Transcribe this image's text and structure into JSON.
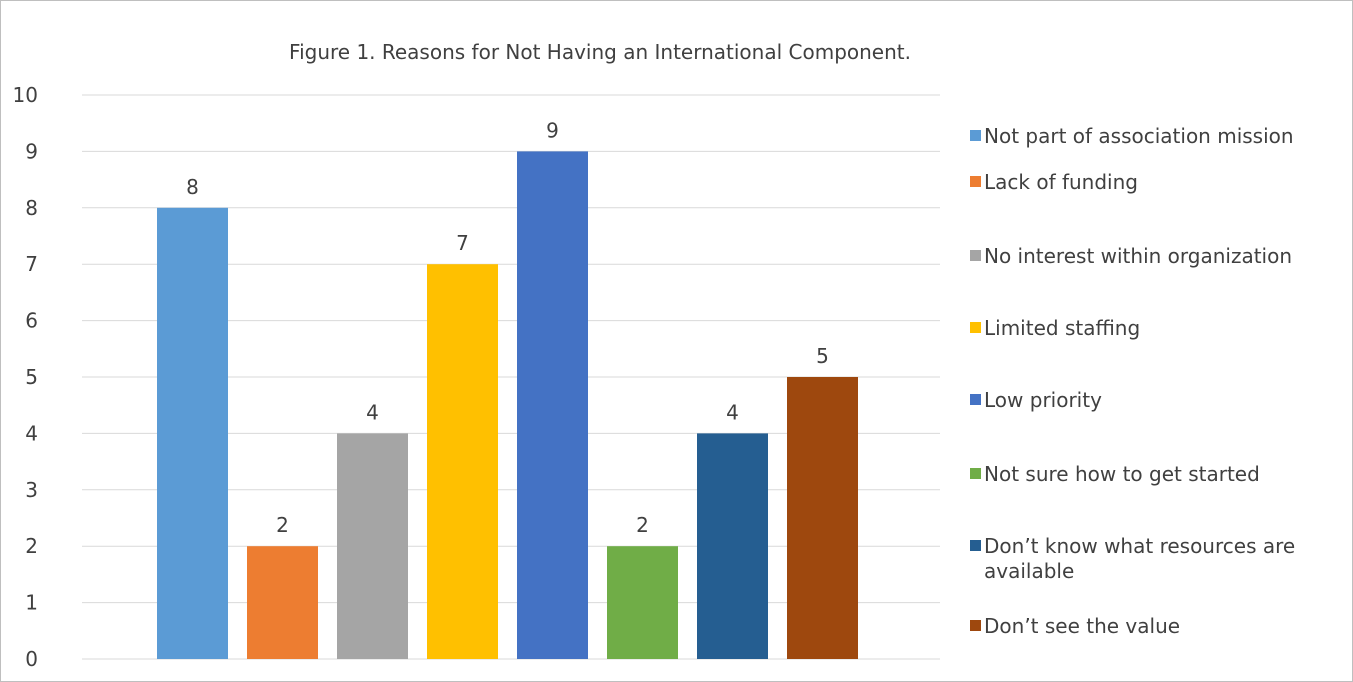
{
  "chart_data": {
    "type": "bar",
    "title": "Figure 1. Reasons for Not Having an International Component.",
    "xlabel": "",
    "ylabel": "",
    "ylim": [
      0,
      10
    ],
    "yticks": [
      0,
      1,
      2,
      3,
      4,
      5,
      6,
      7,
      8,
      9,
      10
    ],
    "grid": true,
    "legend_position": "right",
    "series": [
      {
        "name": "Not part of association mission",
        "values": [
          8
        ],
        "color": "#5b9bd5"
      },
      {
        "name": "Lack of funding",
        "values": [
          2
        ],
        "color": "#ed7d31"
      },
      {
        "name": "No interest within organization",
        "values": [
          4
        ],
        "color": "#a5a5a5"
      },
      {
        "name": "Limited staffing",
        "values": [
          7
        ],
        "color": "#ffc000"
      },
      {
        "name": "Low priority",
        "values": [
          9
        ],
        "color": "#4472c4"
      },
      {
        "name": "Not sure how to get started",
        "values": [
          2
        ],
        "color": "#70ad47"
      },
      {
        "name": "Don’t know what resources are available",
        "values": [
          4
        ],
        "color": "#255e91"
      },
      {
        "name": "Don’t see the value",
        "values": [
          5
        ],
        "color": "#9e480e"
      }
    ],
    "data_labels": [
      "8",
      "2",
      "4",
      "7",
      "9",
      "2",
      "4",
      "5"
    ]
  }
}
